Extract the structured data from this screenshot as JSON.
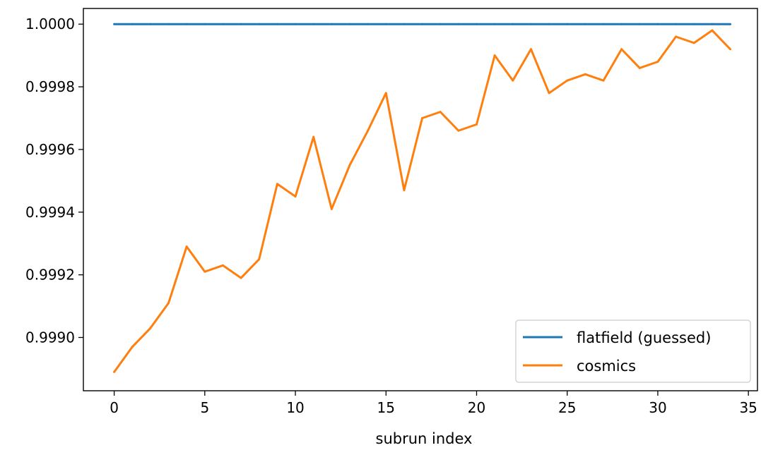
{
  "chart_data": {
    "type": "line",
    "title": "",
    "xlabel": "subrun index",
    "ylabel": "",
    "xlim": [
      -1.7,
      35.5
    ],
    "ylim": [
      0.99883,
      1.00005
    ],
    "x_ticks": [
      0,
      5,
      10,
      15,
      20,
      25,
      30,
      35
    ],
    "x_tick_labels": [
      "0",
      "5",
      "10",
      "15",
      "20",
      "25",
      "30",
      "35"
    ],
    "y_ticks": [
      0.999,
      0.9992,
      0.9994,
      0.9996,
      0.9998,
      1.0
    ],
    "y_tick_labels": [
      "0.9990",
      "0.9992",
      "0.9994",
      "0.9996",
      "0.9998",
      "1.0000"
    ],
    "grid": false,
    "legend_position": "lower-right",
    "x": [
      0,
      1,
      2,
      3,
      4,
      5,
      6,
      7,
      8,
      9,
      10,
      11,
      12,
      13,
      14,
      15,
      16,
      17,
      18,
      19,
      20,
      21,
      22,
      23,
      24,
      25,
      26,
      27,
      28,
      29,
      30,
      31,
      32,
      33,
      34
    ],
    "series": [
      {
        "name": "flatfield (guessed)",
        "color": "#1f77b4",
        "values": [
          1.0,
          1.0,
          1.0,
          1.0,
          1.0,
          1.0,
          1.0,
          1.0,
          1.0,
          1.0,
          1.0,
          1.0,
          1.0,
          1.0,
          1.0,
          1.0,
          1.0,
          1.0,
          1.0,
          1.0,
          1.0,
          1.0,
          1.0,
          1.0,
          1.0,
          1.0,
          1.0,
          1.0,
          1.0,
          1.0,
          1.0,
          1.0,
          1.0,
          1.0,
          1.0
        ]
      },
      {
        "name": "cosmics",
        "color": "#ff7f0e",
        "values": [
          0.99889,
          0.99897,
          0.99903,
          0.99911,
          0.99929,
          0.99921,
          0.99923,
          0.99919,
          0.99925,
          0.99949,
          0.99945,
          0.99964,
          0.99941,
          0.99955,
          0.99966,
          0.99978,
          0.99947,
          0.9997,
          0.99972,
          0.99966,
          0.99968,
          0.9999,
          0.99982,
          0.99992,
          0.99978,
          0.99982,
          0.99984,
          0.99982,
          0.99992,
          0.99986,
          0.99988,
          0.99996,
          0.99994,
          0.99998,
          0.99992
        ]
      }
    ]
  }
}
